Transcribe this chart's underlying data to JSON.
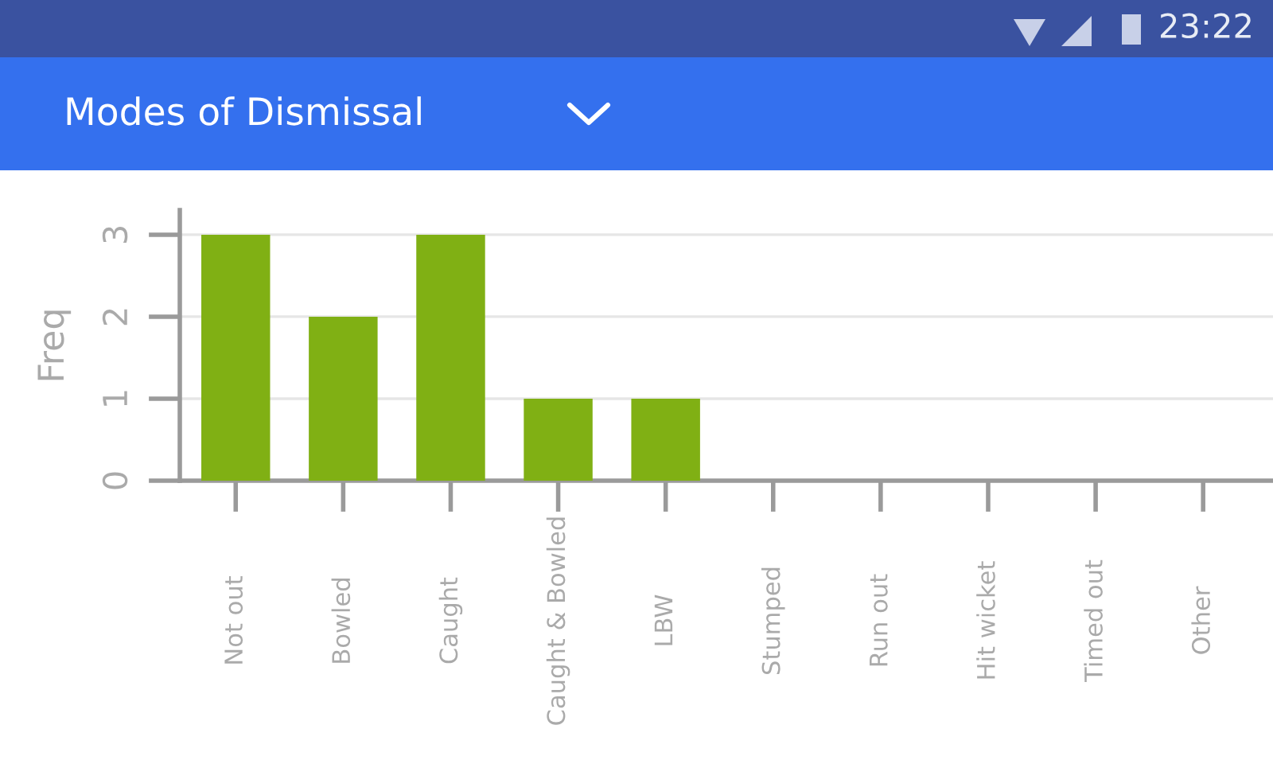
{
  "chart_data": {
    "type": "bar",
    "title": "Modes of Dismissal",
    "annotations": [
      "23:22"
    ],
    "ylabel": "Freq",
    "categories": [
      "Not out",
      "Bowled",
      "Caught",
      "Caught & Bowled",
      "LBW",
      "Stumped",
      "Run out",
      "Hit wicket",
      "Timed out",
      "Other"
    ],
    "values": [
      3,
      2,
      3,
      1,
      1,
      0,
      0,
      0,
      0,
      0
    ],
    "color": "#80b014",
    "ylim": [
      0,
      3.3
    ],
    "yticks": [
      0,
      1,
      2,
      3
    ],
    "grid": "y"
  }
}
